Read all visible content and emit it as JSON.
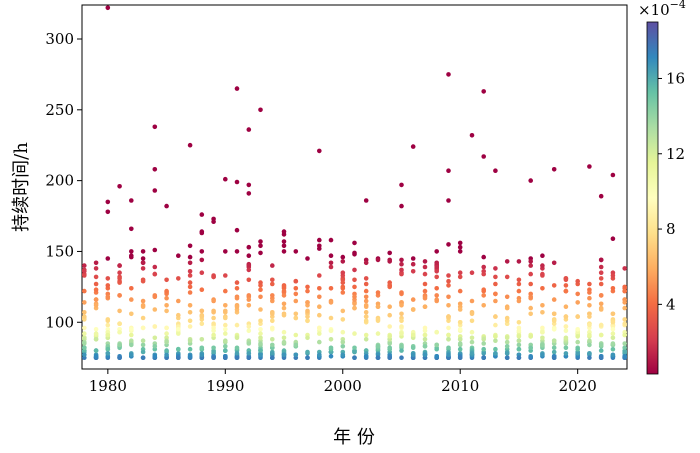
{
  "chart_data": {
    "type": "scatter",
    "title": "",
    "xlabel": "年 份",
    "ylabel": "持续时间/h",
    "xlim": [
      1977.8,
      2024.2
    ],
    "ylim": [
      67,
      324
    ],
    "xticks": [
      1980,
      1990,
      2000,
      2010,
      2020
    ],
    "xtick_labels": [
      "1980",
      "1990",
      "2000",
      "2010",
      "2020"
    ],
    "yticks": [
      100,
      150,
      200,
      250,
      300
    ],
    "ytick_labels": [
      "100",
      "150",
      "200",
      "250",
      "300"
    ],
    "grid": false,
    "colormap": "Spectral",
    "colorbar": {
      "range": [
        0.3,
        19
      ],
      "ticks": [
        4,
        8,
        12,
        16
      ],
      "tick_labels": [
        "4",
        "8",
        "12",
        "16"
      ],
      "multiplier": "×10",
      "multiplier_exp": "−4"
    },
    "outliers": [
      {
        "x": 1980,
        "y": 322
      },
      {
        "x": 1980,
        "y": 185
      },
      {
        "x": 1980,
        "y": 178
      },
      {
        "x": 1980,
        "y": 145
      },
      {
        "x": 1981,
        "y": 196
      },
      {
        "x": 1982,
        "y": 186
      },
      {
        "x": 1982,
        "y": 166
      },
      {
        "x": 1984,
        "y": 238
      },
      {
        "x": 1984,
        "y": 208
      },
      {
        "x": 1984,
        "y": 193
      },
      {
        "x": 1985,
        "y": 182
      },
      {
        "x": 1987,
        "y": 225
      },
      {
        "x": 1988,
        "y": 176
      },
      {
        "x": 1989,
        "y": 171
      },
      {
        "x": 1990,
        "y": 201
      },
      {
        "x": 1991,
        "y": 265
      },
      {
        "x": 1991,
        "y": 199
      },
      {
        "x": 1992,
        "y": 236
      },
      {
        "x": 1992,
        "y": 197
      },
      {
        "x": 1992,
        "y": 191
      },
      {
        "x": 1993,
        "y": 250
      },
      {
        "x": 1998,
        "y": 221
      },
      {
        "x": 2002,
        "y": 186
      },
      {
        "x": 2005,
        "y": 197
      },
      {
        "x": 2005,
        "y": 182
      },
      {
        "x": 2006,
        "y": 224
      },
      {
        "x": 2009,
        "y": 275
      },
      {
        "x": 2009,
        "y": 207
      },
      {
        "x": 2009,
        "y": 186
      },
      {
        "x": 2011,
        "y": 232
      },
      {
        "x": 2012,
        "y": 263
      },
      {
        "x": 2012,
        "y": 217
      },
      {
        "x": 2013,
        "y": 207
      },
      {
        "x": 2016,
        "y": 200
      },
      {
        "x": 2018,
        "y": 208
      },
      {
        "x": 2021,
        "y": 210
      },
      {
        "x": 2022,
        "y": 189
      },
      {
        "x": 2023,
        "y": 204
      },
      {
        "x": 2023,
        "y": 159
      }
    ],
    "yearly_max": [
      147,
      142,
      138,
      146,
      150,
      152,
      154,
      146,
      150,
      160,
      168,
      175,
      158,
      172,
      178,
      168,
      160,
      166,
      152,
      150,
      162,
      168,
      150,
      165,
      154,
      150,
      150,
      153,
      155,
      145,
      150,
      168,
      160,
      145,
      150,
      142,
      145,
      150,
      146,
      150,
      152,
      145,
      140,
      134
    ]
  }
}
